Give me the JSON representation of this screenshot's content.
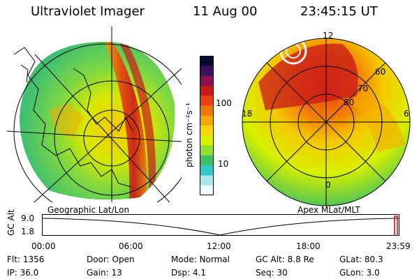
{
  "header": {
    "instrument": "Ultraviolet Imager",
    "date": "11 Aug 00",
    "time": "23:45:15 UT"
  },
  "left_panel": {
    "label": "Geographic Lat/Lon"
  },
  "right_panel": {
    "label": "Apex MLat/MLT",
    "mlt_labels": [
      "12",
      "18",
      "6",
      "0"
    ],
    "lat_labels": [
      "60",
      "70",
      "80"
    ]
  },
  "colorbar": {
    "unit_label": "photon cm⁻²s⁻¹",
    "ticks": [
      "100",
      "10"
    ],
    "colors": [
      "#0a0a30",
      "#3a1060",
      "#8a1050",
      "#c81818",
      "#e84010",
      "#f07808",
      "#f5a800",
      "#f8d800",
      "#d8f000",
      "#90e030",
      "#40c060",
      "#30c8c8",
      "#a8e8f0",
      "#f0f8ff"
    ]
  },
  "timeline": {
    "axis_label": "GC Alt",
    "y_ticks": [
      "9.0",
      "1.8"
    ],
    "x_ticks": [
      "00:00",
      "06:00",
      "12:00",
      "18:00",
      "23:59"
    ]
  },
  "status": {
    "row1": [
      {
        "label": "Flt:",
        "value": "1356"
      },
      {
        "label": "Door:",
        "value": "Open"
      },
      {
        "label": "Mode:",
        "value": "Normal"
      },
      {
        "label": "GC Alt:",
        "value": "8.8 Re"
      },
      {
        "label": "GLat:",
        "value": "80.3"
      }
    ],
    "row2": [
      {
        "label": "IP:",
        "value": "36.0"
      },
      {
        "label": "Gain:",
        "value": "13"
      },
      {
        "label": "Dsp:",
        "value": "4.1"
      },
      {
        "label": "Seq:",
        "value": "30"
      },
      {
        "label": "GLon:",
        "value": "3.0"
      }
    ]
  }
}
